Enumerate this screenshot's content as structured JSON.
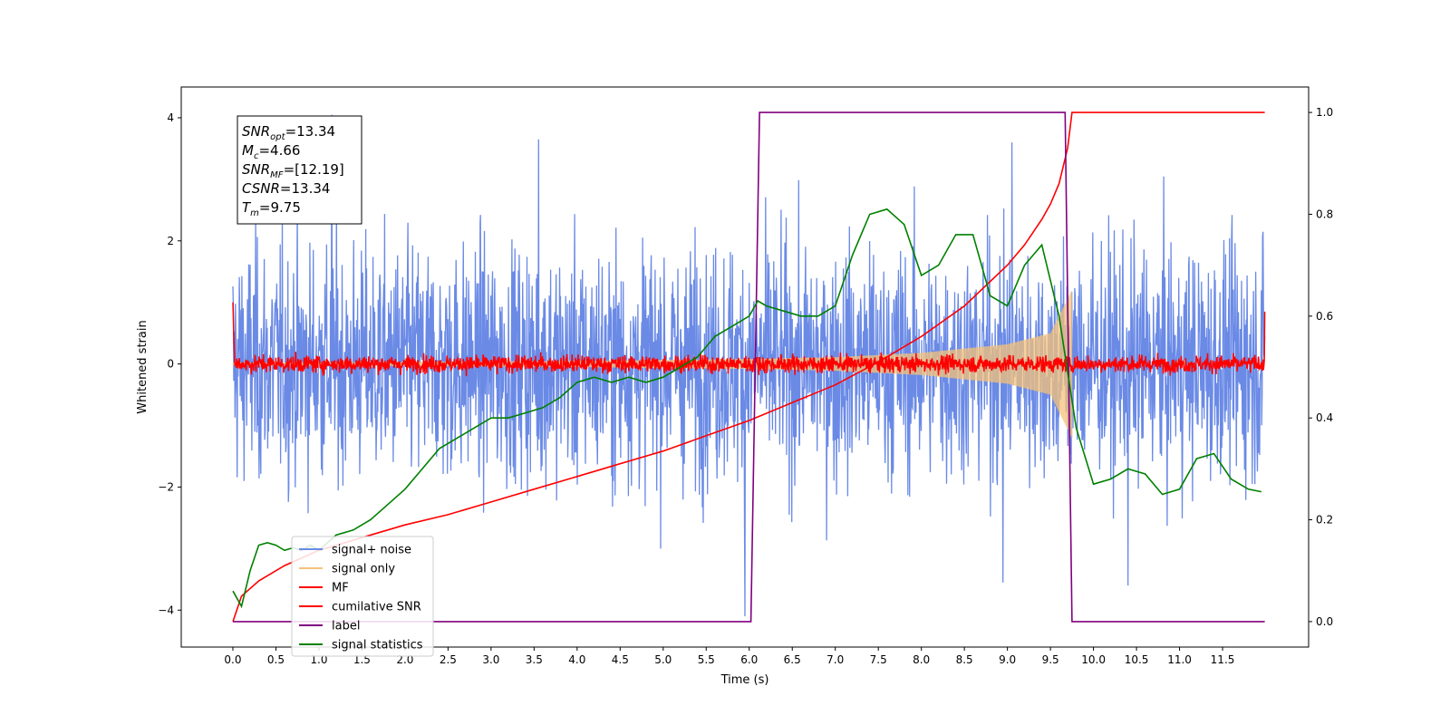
{
  "chart_data": {
    "type": "line",
    "title": "",
    "xlabel": "Time (s)",
    "ylabel": "Whitened strain",
    "y2label": "",
    "xlim": [
      -0.6,
      12.5
    ],
    "ylim": [
      -4.6,
      4.5
    ],
    "y2lim": [
      -0.05,
      1.05
    ],
    "x_ticks": [
      0.0,
      0.5,
      1.0,
      1.5,
      2.0,
      2.5,
      3.0,
      3.5,
      4.0,
      4.5,
      5.0,
      5.5,
      6.0,
      6.5,
      7.0,
      7.5,
      8.0,
      8.5,
      9.0,
      9.5,
      10.0,
      10.5,
      11.0,
      11.5
    ],
    "x_tick_labels": [
      "0.0",
      "0.5",
      "1.0",
      "1.5",
      "2.0",
      "2.5",
      "3.0",
      "3.5",
      "4.0",
      "4.5",
      "5.0",
      "5.5",
      "6.0",
      "6.5",
      "7.0",
      "7.5",
      "8.0",
      "8.5",
      "9.0",
      "9.5",
      "10.0",
      "10.5",
      "11.0",
      "11.5"
    ],
    "y_ticks": [
      -4,
      -2,
      0,
      2,
      4
    ],
    "y_tick_labels": [
      "−4",
      "−2",
      "0",
      "2",
      "4"
    ],
    "y2_ticks": [
      0.0,
      0.2,
      0.4,
      0.6,
      0.8,
      1.0
    ],
    "y2_tick_labels": [
      "0.0",
      "0.2",
      "0.4",
      "0.6",
      "0.8",
      "1.0"
    ],
    "grid": false,
    "legend_placement": "lower-left",
    "annotation": {
      "lines": [
        {
          "base": "SNR",
          "sub": "opt",
          "value": "=13.34"
        },
        {
          "base": "M",
          "sub": "c",
          "value": "=4.66"
        },
        {
          "base": "SNR",
          "sub": "MF",
          "value": "=[12.19]"
        },
        {
          "base": "CSNR",
          "sub": "",
          "value": "=13.34"
        },
        {
          "base": "T",
          "sub": "m",
          "value": "=9.75"
        }
      ],
      "placement": "top-left"
    },
    "series": [
      {
        "name": "signal+ noise",
        "axis": "left",
        "color": "#6a8ae6",
        "kind": "noise",
        "x_range": [
          0.0,
          11.99
        ],
        "sigma": 0.95,
        "notable_points": [
          [
            1.15,
            4.05
          ],
          [
            5.95,
            -4.1
          ],
          [
            9.05,
            3.6
          ],
          [
            10.4,
            -3.6
          ],
          [
            8.95,
            -3.55
          ],
          [
            3.55,
            3.65
          ]
        ]
      },
      {
        "name": "signal only",
        "axis": "left",
        "color": "#f5c27a",
        "kind": "chirp_envelope",
        "envelope": [
          [
            0.0,
            0.02
          ],
          [
            2.0,
            0.03
          ],
          [
            4.0,
            0.05
          ],
          [
            6.0,
            0.08
          ],
          [
            7.0,
            0.11
          ],
          [
            8.0,
            0.18
          ],
          [
            9.0,
            0.32
          ],
          [
            9.5,
            0.5
          ],
          [
            9.75,
            1.2
          ]
        ]
      },
      {
        "name": "MF",
        "axis": "left",
        "color": "#ff0000",
        "kind": "noise",
        "x_range": [
          0.0,
          11.99
        ],
        "sigma": 0.07,
        "edge_values": [
          [
            0.0,
            1.0
          ],
          [
            11.99,
            0.85
          ]
        ]
      },
      {
        "name": "cumilative SNR",
        "axis": "right",
        "color": "#ff0000",
        "x": [
          0.0,
          0.1,
          0.3,
          0.6,
          1.0,
          1.5,
          2.0,
          2.5,
          3.0,
          3.5,
          4.0,
          4.5,
          5.0,
          5.5,
          6.0,
          6.5,
          7.0,
          7.5,
          8.0,
          8.5,
          9.0,
          9.2,
          9.4,
          9.5,
          9.6,
          9.7,
          9.75,
          11.99
        ],
        "y": [
          0.0,
          0.05,
          0.08,
          0.11,
          0.14,
          0.165,
          0.19,
          0.21,
          0.235,
          0.26,
          0.285,
          0.31,
          0.335,
          0.365,
          0.395,
          0.43,
          0.465,
          0.51,
          0.56,
          0.62,
          0.7,
          0.74,
          0.79,
          0.82,
          0.86,
          0.93,
          1.0,
          1.0
        ]
      },
      {
        "name": "label",
        "axis": "right",
        "color": "#800080",
        "x": [
          0.0,
          6.02,
          6.12,
          9.67,
          9.75,
          11.99
        ],
        "y": [
          0.0,
          0.0,
          1.0,
          1.0,
          0.0,
          0.0
        ]
      },
      {
        "name": "signal statistics",
        "axis": "right",
        "color": "#008000",
        "x": [
          0.0,
          0.1,
          0.2,
          0.3,
          0.4,
          0.5,
          0.6,
          0.7,
          0.8,
          0.9,
          1.0,
          1.2,
          1.4,
          1.6,
          1.8,
          2.0,
          2.2,
          2.4,
          2.6,
          2.8,
          3.0,
          3.2,
          3.4,
          3.6,
          3.8,
          4.0,
          4.2,
          4.4,
          4.6,
          4.8,
          5.0,
          5.2,
          5.4,
          5.6,
          5.8,
          6.0,
          6.1,
          6.2,
          6.4,
          6.6,
          6.8,
          7.0,
          7.2,
          7.4,
          7.6,
          7.8,
          8.0,
          8.2,
          8.4,
          8.6,
          8.8,
          9.0,
          9.2,
          9.4,
          9.6,
          9.8,
          10.0,
          10.2,
          10.4,
          10.6,
          10.8,
          11.0,
          11.2,
          11.4,
          11.6,
          11.8,
          11.95
        ],
        "y": [
          0.06,
          0.03,
          0.1,
          0.15,
          0.155,
          0.15,
          0.14,
          0.145,
          0.14,
          0.15,
          0.14,
          0.17,
          0.18,
          0.2,
          0.23,
          0.26,
          0.3,
          0.34,
          0.36,
          0.38,
          0.4,
          0.4,
          0.41,
          0.42,
          0.44,
          0.47,
          0.48,
          0.47,
          0.48,
          0.47,
          0.48,
          0.5,
          0.52,
          0.56,
          0.58,
          0.6,
          0.63,
          0.62,
          0.61,
          0.6,
          0.6,
          0.62,
          0.72,
          0.8,
          0.81,
          0.78,
          0.68,
          0.7,
          0.76,
          0.76,
          0.64,
          0.62,
          0.7,
          0.74,
          0.6,
          0.38,
          0.27,
          0.28,
          0.3,
          0.29,
          0.25,
          0.26,
          0.32,
          0.33,
          0.28,
          0.26,
          0.255
        ]
      }
    ]
  }
}
